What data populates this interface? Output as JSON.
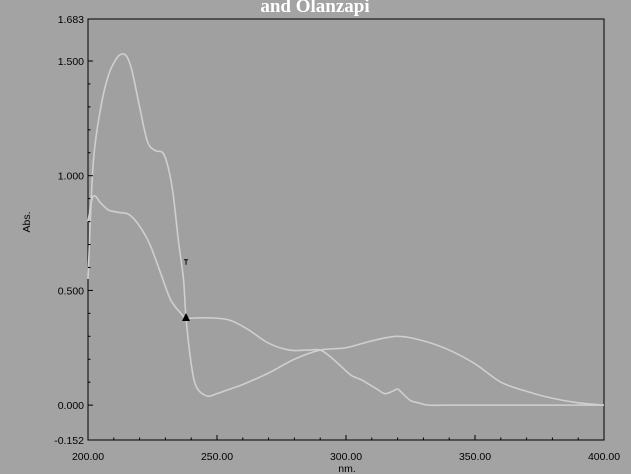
{
  "chart_data": {
    "type": "line",
    "title": "and Olanzapi",
    "xlabel": "nm.",
    "ylabel": "Abs.",
    "xlim": [
      200,
      400
    ],
    "ylim": [
      -0.152,
      1.683
    ],
    "x_tick_labels": [
      "200.00",
      "250.00",
      "300.00",
      "350.00",
      "400.00"
    ],
    "y_tick_labels": [
      "1.683",
      "1.500",
      "1.000",
      "0.500",
      "0.000",
      "-0.152"
    ],
    "grid": false,
    "colors": {
      "background": "#a3a3a3",
      "plot_area": "#a0a0a0",
      "line": "#cfcfcf",
      "marker": "#000000"
    },
    "series": [
      {
        "x": [
          200,
          202,
          205,
          208,
          211,
          213,
          215,
          217,
          220,
          223,
          226,
          229,
          231,
          233,
          235,
          237,
          238,
          240,
          242,
          246,
          250,
          255,
          260,
          270,
          280,
          290,
          300,
          310,
          320,
          330,
          340,
          350,
          360,
          370,
          380,
          390,
          400
        ],
        "y": [
          0.55,
          1.05,
          1.3,
          1.44,
          1.51,
          1.53,
          1.52,
          1.46,
          1.3,
          1.15,
          1.11,
          1.1,
          1.04,
          0.92,
          0.72,
          0.55,
          0.38,
          0.18,
          0.08,
          0.04,
          0.05,
          0.07,
          0.09,
          0.14,
          0.2,
          0.24,
          0.25,
          0.28,
          0.3,
          0.28,
          0.24,
          0.18,
          0.1,
          0.06,
          0.03,
          0.01,
          0.0
        ]
      },
      {
        "x": [
          200,
          202,
          205,
          208,
          212,
          216,
          220,
          224,
          228,
          232,
          236,
          238,
          242,
          248,
          255,
          262,
          270,
          278,
          285,
          290,
          294,
          298,
          302,
          306,
          309,
          312,
          315,
          318,
          320,
          322,
          325,
          328,
          332,
          340,
          350,
          360,
          370,
          380,
          390,
          400
        ],
        "y": [
          0.8,
          0.91,
          0.88,
          0.85,
          0.84,
          0.83,
          0.78,
          0.7,
          0.58,
          0.46,
          0.4,
          0.38,
          0.38,
          0.38,
          0.37,
          0.33,
          0.27,
          0.24,
          0.24,
          0.24,
          0.21,
          0.17,
          0.13,
          0.11,
          0.09,
          0.07,
          0.05,
          0.06,
          0.07,
          0.05,
          0.02,
          0.01,
          0.0,
          0.0,
          0.0,
          0.0,
          0.0,
          0.0,
          0.0,
          0.0
        ]
      }
    ],
    "markers": [
      {
        "type": "triangle",
        "x": 238,
        "y": 0.38
      },
      {
        "type": "tick",
        "x": 238,
        "y": 0.625
      }
    ]
  }
}
